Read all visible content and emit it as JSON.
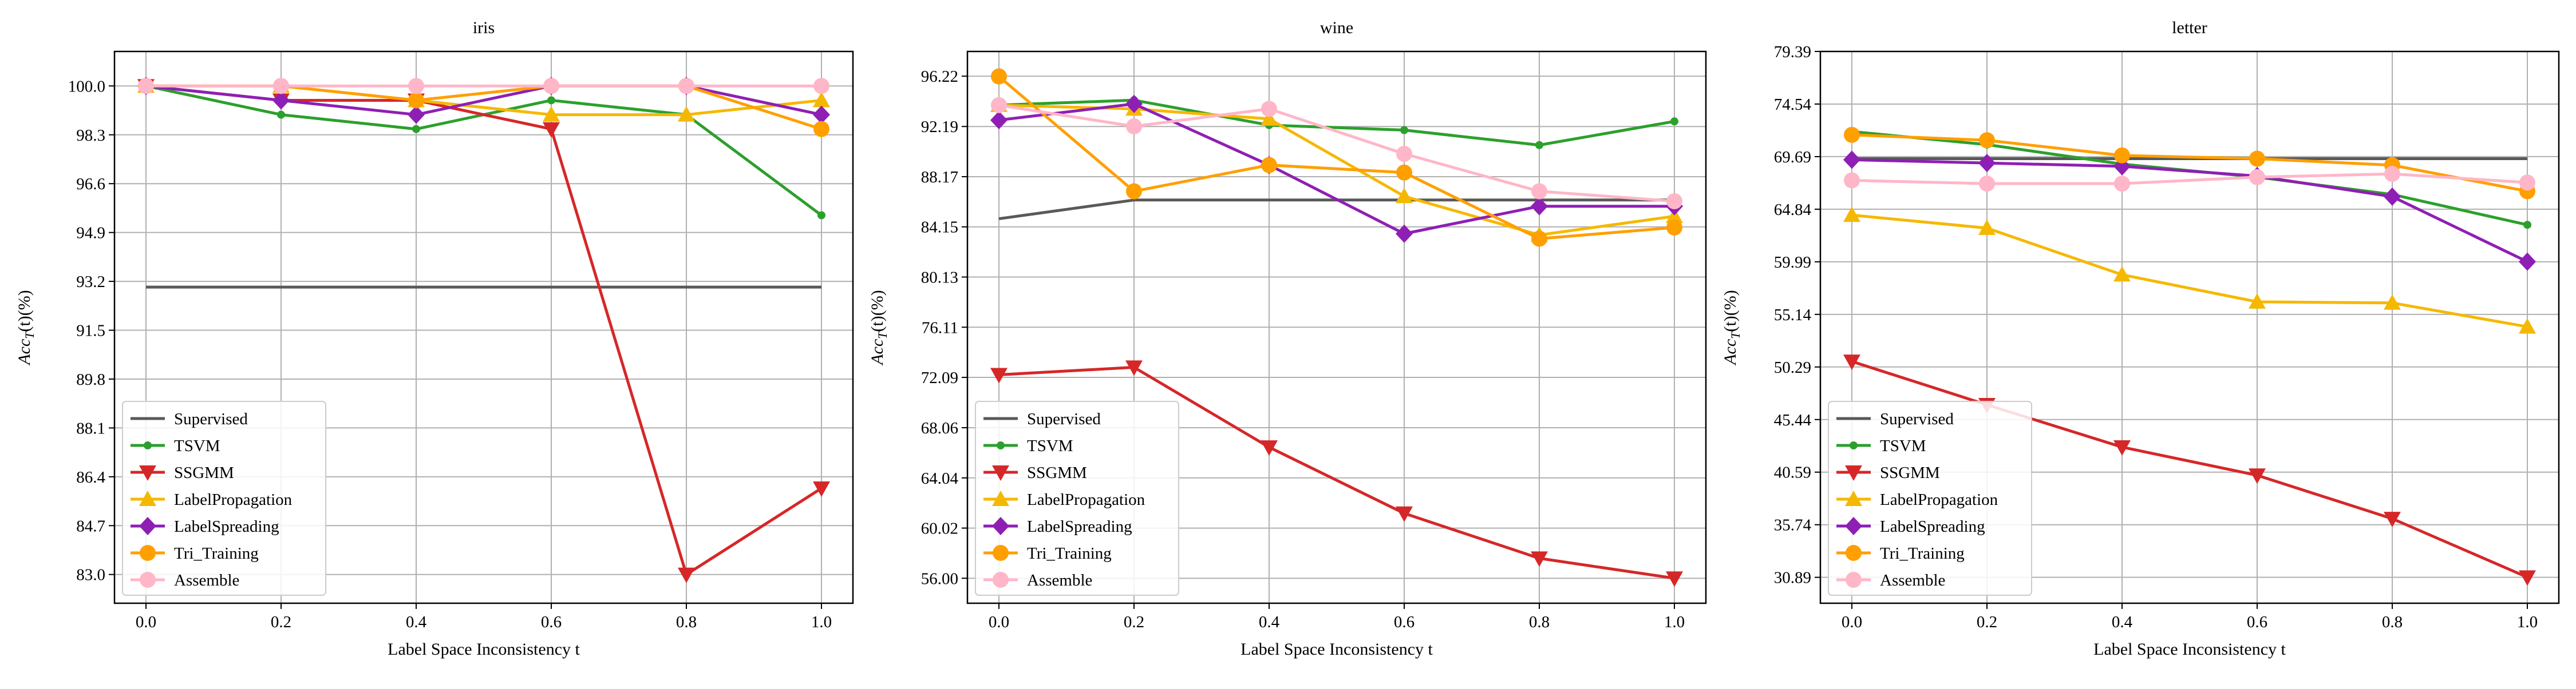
{
  "chart_data": [
    {
      "type": "line",
      "title": "iris",
      "xlabel": "Label Space Inconsistency t",
      "ylabel": "Acc_T(t)(%)",
      "x": [
        0.0,
        0.2,
        0.4,
        0.6,
        0.8,
        1.0
      ],
      "x_ticks": [
        "0.0",
        "0.2",
        "0.4",
        "0.6",
        "0.8",
        "1.0"
      ],
      "y_ticks": [
        "83.0",
        "84.7",
        "86.4",
        "88.1",
        "89.8",
        "91.5",
        "93.2",
        "94.9",
        "96.6",
        "98.3",
        "100.0"
      ],
      "ylim": [
        82.0,
        101.2
      ],
      "grid": true,
      "legend_position": "lower-left",
      "series": [
        {
          "name": "Supervised",
          "values": [
            93.0,
            93.0,
            93.0,
            93.0,
            93.0,
            93.0
          ]
        },
        {
          "name": "TSVM",
          "values": [
            100.0,
            99.0,
            98.5,
            99.5,
            99.0,
            95.5
          ]
        },
        {
          "name": "SSGMM",
          "values": [
            100.0,
            99.5,
            99.5,
            98.5,
            83.0,
            86.0
          ]
        },
        {
          "name": "LabelPropagation",
          "values": [
            100.0,
            100.0,
            99.5,
            99.0,
            99.0,
            99.5
          ]
        },
        {
          "name": "LabelSpreading",
          "values": [
            100.0,
            99.5,
            99.0,
            100.0,
            100.0,
            99.0
          ]
        },
        {
          "name": "Tri_Training",
          "values": [
            100.0,
            100.0,
            99.5,
            100.0,
            100.0,
            98.5
          ]
        },
        {
          "name": "Assemble",
          "values": [
            100.0,
            100.0,
            100.0,
            100.0,
            100.0,
            100.0
          ]
        }
      ]
    },
    {
      "type": "line",
      "title": "wine",
      "xlabel": "Label Space Inconsistency t",
      "ylabel": "Acc_T(t)(%)",
      "x": [
        0.0,
        0.2,
        0.4,
        0.6,
        0.8,
        1.0
      ],
      "x_ticks": [
        "0.0",
        "0.2",
        "0.4",
        "0.6",
        "0.8",
        "1.0"
      ],
      "y_ticks": [
        "56.00",
        "60.02",
        "64.04",
        "68.06",
        "72.09",
        "76.11",
        "80.13",
        "84.15",
        "88.17",
        "92.19",
        "96.22"
      ],
      "ylim": [
        54.0,
        98.2
      ],
      "grid": true,
      "legend_position": "lower-left",
      "series": [
        {
          "name": "Supervised",
          "values": [
            84.8,
            86.3,
            86.3,
            86.3,
            86.3,
            86.3
          ]
        },
        {
          "name": "TSVM",
          "values": [
            93.9,
            94.3,
            92.3,
            91.9,
            90.7,
            92.6
          ]
        },
        {
          "name": "SSGMM",
          "values": [
            72.3,
            72.9,
            66.5,
            61.2,
            57.6,
            56.0
          ]
        },
        {
          "name": "LabelPropagation",
          "values": [
            93.9,
            93.6,
            92.8,
            86.6,
            83.5,
            85.0
          ]
        },
        {
          "name": "LabelSpreading",
          "values": [
            92.7,
            94.0,
            89.1,
            83.6,
            85.8,
            85.8
          ]
        },
        {
          "name": "Tri_Training",
          "values": [
            96.2,
            87.0,
            89.1,
            88.5,
            83.2,
            84.1
          ]
        },
        {
          "name": "Assemble",
          "values": [
            93.9,
            92.2,
            93.6,
            90.0,
            87.0,
            86.2
          ]
        }
      ]
    },
    {
      "type": "line",
      "title": "letter",
      "xlabel": "Label Space Inconsistency t",
      "ylabel": "Acc_T(t)(%)",
      "x": [
        0.0,
        0.2,
        0.4,
        0.6,
        0.8,
        1.0
      ],
      "x_ticks": [
        "0.0",
        "0.2",
        "0.4",
        "0.6",
        "0.8",
        "1.0"
      ],
      "y_ticks": [
        "30.89",
        "35.74",
        "40.59",
        "45.44",
        "50.29",
        "55.14",
        "59.99",
        "64.84",
        "69.69",
        "74.54",
        "79.39"
      ],
      "ylim": [
        28.5,
        79.39
      ],
      "grid": true,
      "legend_position": "lower-left",
      "series": [
        {
          "name": "Supervised",
          "values": [
            69.5,
            69.5,
            69.5,
            69.5,
            69.5,
            69.5
          ]
        },
        {
          "name": "TSVM",
          "values": [
            72.0,
            70.8,
            69.0,
            67.8,
            66.2,
            63.4
          ]
        },
        {
          "name": "SSGMM",
          "values": [
            50.8,
            46.8,
            42.9,
            40.3,
            36.3,
            30.9
          ]
        },
        {
          "name": "LabelPropagation",
          "values": [
            64.3,
            63.1,
            58.8,
            56.3,
            56.2,
            54.0
          ]
        },
        {
          "name": "LabelSpreading",
          "values": [
            69.4,
            69.1,
            68.8,
            67.9,
            66.0,
            60.0
          ]
        },
        {
          "name": "Tri_Training",
          "values": [
            71.7,
            71.2,
            69.8,
            69.5,
            68.9,
            66.5
          ]
        },
        {
          "name": "Assemble",
          "values": [
            67.5,
            67.2,
            67.2,
            67.8,
            68.1,
            67.3
          ]
        }
      ]
    }
  ],
  "series_styles": [
    {
      "name": "Supervised",
      "color": "#595959",
      "marker": "none"
    },
    {
      "name": "TSVM",
      "color": "#2ca02c",
      "marker": "dot"
    },
    {
      "name": "SSGMM",
      "color": "#d62728",
      "marker": "triangle-down"
    },
    {
      "name": "LabelPropagation",
      "color": "#f5b800",
      "marker": "triangle-up"
    },
    {
      "name": "LabelSpreading",
      "color": "#8e1fb4",
      "marker": "diamond"
    },
    {
      "name": "Tri_Training",
      "color": "#ff9f00",
      "marker": "circle"
    },
    {
      "name": "Assemble",
      "color": "#ffb6c8",
      "marker": "circle"
    }
  ]
}
